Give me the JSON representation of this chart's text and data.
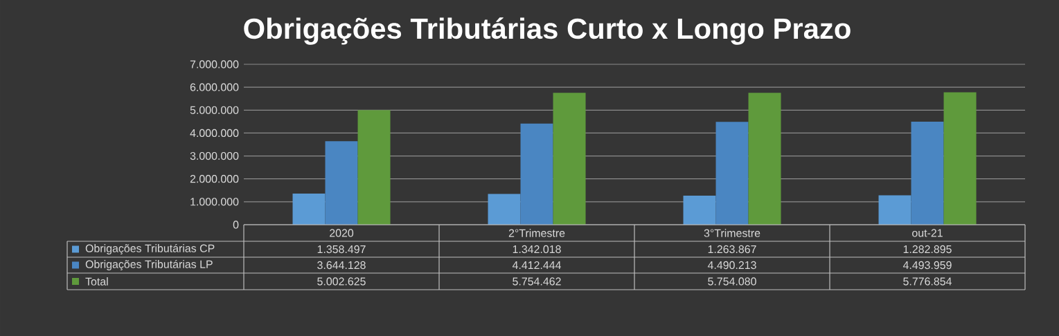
{
  "chart_data": {
    "type": "bar",
    "title": "Obrigações Tributárias Curto x Longo Prazo",
    "categories": [
      "2020",
      "2°Trimestre",
      "3°Trimestre",
      "out-21"
    ],
    "series": [
      {
        "name": "Obrigações Tributárias CP",
        "color": "#5b9bd5",
        "values": [
          1358497,
          1342018,
          1263867,
          1282895
        ],
        "value_labels": [
          "1.358.497",
          "1.342.018",
          "1.263.867",
          "1.282.895"
        ]
      },
      {
        "name": "Obrigações Tributárias LP",
        "color": "#4a86c2",
        "values": [
          3644128,
          4412444,
          4490213,
          4493959
        ],
        "value_labels": [
          "3.644.128",
          "4.412.444",
          "4.490.213",
          "4.493.959"
        ]
      },
      {
        "name": "Total",
        "color": "#5f9a3c",
        "values": [
          5002625,
          5754462,
          5754080,
          5776854
        ],
        "value_labels": [
          "5.002.625",
          "5.754.462",
          "5.754.080",
          "5.776.854"
        ]
      }
    ],
    "ylim": [
      0,
      7000000
    ],
    "yticks": [
      0,
      {
        "value": 1000000,
        "label": "1.000.000"
      },
      {
        "value": 2000000,
        "label": "2.000.000"
      },
      {
        "value": 3000000,
        "label": "3.000.000"
      },
      {
        "value": 4000000,
        "label": "4.000.000"
      },
      {
        "value": 5000000,
        "label": "5.000.000"
      },
      {
        "value": 6000000,
        "label": "6.000.000"
      },
      {
        "value": 7000000,
        "label": "7.000.000"
      }
    ],
    "grid": "y",
    "legend": "bottom left"
  }
}
